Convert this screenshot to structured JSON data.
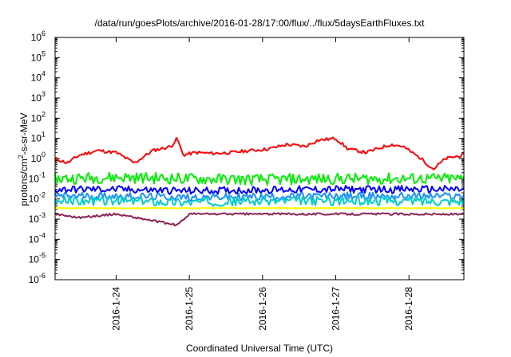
{
  "chart_data": {
    "type": "line",
    "title": "/data/run/goesPlots/archive/2016-01-28/17:00/flux/../flux/5daysEarthFluxes.txt",
    "xlabel": "Coordinated Universal Time (UTC)",
    "ylabel_main": "protons/cm",
    "ylabel_sup": "2",
    "ylabel_tail": "-s-sr-MeV",
    "yscale": "log",
    "ylim": [
      1e-06,
      1000000.0
    ],
    "y_ticks": [
      {
        "base": "10",
        "exp": "-6"
      },
      {
        "base": "10",
        "exp": "-5"
      },
      {
        "base": "10",
        "exp": "-4"
      },
      {
        "base": "10",
        "exp": "-3"
      },
      {
        "base": "10",
        "exp": "-2"
      },
      {
        "base": "10",
        "exp": "-1"
      },
      {
        "base": "10",
        "exp": "0"
      },
      {
        "base": "10",
        "exp": "1"
      },
      {
        "base": "10",
        "exp": "2"
      },
      {
        "base": "10",
        "exp": "3"
      },
      {
        "base": "10",
        "exp": "4"
      },
      {
        "base": "10",
        "exp": "5"
      },
      {
        "base": "10",
        "exp": "6"
      }
    ],
    "xlim": [
      "2016-01-23 04:00",
      "2016-01-28 18:00"
    ],
    "x_ticks": [
      "2016-1-24",
      "2016-1-25",
      "2016-1-26",
      "2016-1-27",
      "2016-1-28"
    ],
    "grid": false,
    "legend": "none",
    "series": [
      {
        "color": "#ff0000",
        "x": [
          "2016-01-23 04:00",
          "2016-01-23 08:00",
          "2016-01-23 12:00",
          "2016-01-23 18:00",
          "2016-01-24 00:00",
          "2016-01-24 06:00",
          "2016-01-24 12:00",
          "2016-01-24 18:00",
          "2016-01-24 20:00",
          "2016-01-24 22:00",
          "2016-01-25 02:00",
          "2016-01-25 08:00",
          "2016-01-25 14:00",
          "2016-01-25 20:00",
          "2016-01-26 02:00",
          "2016-01-26 08:00",
          "2016-01-26 14:00",
          "2016-01-26 18:00",
          "2016-01-27 00:00",
          "2016-01-27 04:00",
          "2016-01-27 10:00",
          "2016-01-27 18:00",
          "2016-01-27 22:00",
          "2016-01-28 04:00",
          "2016-01-28 08:00",
          "2016-01-28 12:00",
          "2016-01-28 18:00"
        ],
        "y": [
          1.0,
          0.6,
          1.5,
          2.5,
          2.0,
          0.6,
          2.5,
          4.0,
          10,
          1.5,
          2.0,
          1.8,
          2.0,
          2.5,
          3.0,
          5.0,
          4.0,
          8.0,
          10,
          3.0,
          2.0,
          5.0,
          4.0,
          1.0,
          0.3,
          1.0,
          1.5
        ]
      },
      {
        "color": "#00ee00",
        "x": [
          "2016-01-23 04:00",
          "2016-01-24 00:00",
          "2016-01-25 00:00",
          "2016-01-26 00:00",
          "2016-01-27 00:00",
          "2016-01-28 00:00",
          "2016-01-28 18:00"
        ],
        "y": [
          0.1,
          0.12,
          0.1,
          0.09,
          0.1,
          0.1,
          0.1
        ]
      },
      {
        "color": "#0000ff",
        "x": [
          "2016-01-23 04:00",
          "2016-01-24 00:00",
          "2016-01-25 00:00",
          "2016-01-26 00:00",
          "2016-01-27 00:00",
          "2016-01-28 00:00",
          "2016-01-28 18:00"
        ],
        "y": [
          0.03,
          0.03,
          0.025,
          0.028,
          0.03,
          0.03,
          0.03
        ]
      },
      {
        "color": "#1e90ff",
        "x": [
          "2016-01-23 04:00",
          "2016-01-24 00:00",
          "2016-01-25 00:00",
          "2016-01-26 00:00",
          "2016-01-27 00:00",
          "2016-01-28 00:00",
          "2016-01-28 18:00"
        ],
        "y": [
          0.014,
          0.014,
          0.012,
          0.013,
          0.014,
          0.014,
          0.014
        ]
      },
      {
        "color": "#00cccc",
        "x": [
          "2016-01-23 04:00",
          "2016-01-24 00:00",
          "2016-01-25 00:00",
          "2016-01-26 00:00",
          "2016-01-27 00:00",
          "2016-01-28 00:00",
          "2016-01-28 18:00"
        ],
        "y": [
          0.008,
          0.008,
          0.007,
          0.008,
          0.008,
          0.008,
          0.008
        ]
      },
      {
        "color": "#ffff00",
        "x": [
          "2016-01-23 04:00",
          "2016-01-28 18:00"
        ],
        "y": [
          0.0035,
          0.0035
        ]
      },
      {
        "color": "#8b2252",
        "x": [
          "2016-01-23 04:00",
          "2016-01-23 12:00",
          "2016-01-24 00:00",
          "2016-01-24 20:00",
          "2016-01-25 00:00",
          "2016-01-26 00:00",
          "2016-01-27 00:00",
          "2016-01-28 00:00",
          "2016-01-28 18:00"
        ],
        "y": [
          0.0018,
          0.0012,
          0.0018,
          0.0005,
          0.0018,
          0.0018,
          0.0018,
          0.0018,
          0.0017
        ]
      }
    ]
  }
}
